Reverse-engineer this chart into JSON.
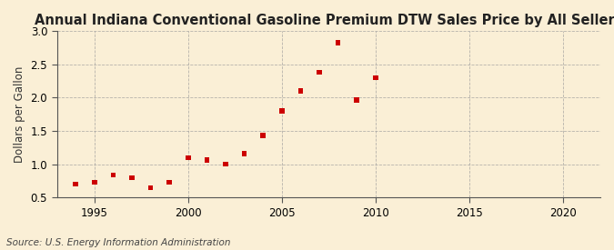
{
  "title": "Annual Indiana Conventional Gasoline Premium DTW Sales Price by All Sellers",
  "ylabel": "Dollars per Gallon",
  "source": "Source: U.S. Energy Information Administration",
  "years": [
    1994,
    1995,
    1996,
    1997,
    1998,
    1999,
    2000,
    2001,
    2002,
    2003,
    2004,
    2005,
    2006,
    2007,
    2008,
    2009,
    2010
  ],
  "values": [
    0.7,
    0.73,
    0.84,
    0.8,
    0.65,
    0.73,
    1.1,
    1.06,
    1.0,
    1.16,
    1.43,
    1.8,
    2.1,
    2.38,
    2.82,
    1.96,
    2.3
  ],
  "xlim": [
    1993,
    2022
  ],
  "ylim": [
    0.5,
    3.0
  ],
  "xticks": [
    1995,
    2000,
    2005,
    2010,
    2015,
    2020
  ],
  "yticks": [
    0.5,
    1.0,
    1.5,
    2.0,
    2.5,
    3.0
  ],
  "marker_color": "#cc0000",
  "marker": "s",
  "marker_size": 4,
  "bg_color": "#faefd6",
  "grid_color": "#999999",
  "title_fontsize": 10.5,
  "label_fontsize": 8.5,
  "tick_fontsize": 8.5,
  "source_fontsize": 7.5
}
